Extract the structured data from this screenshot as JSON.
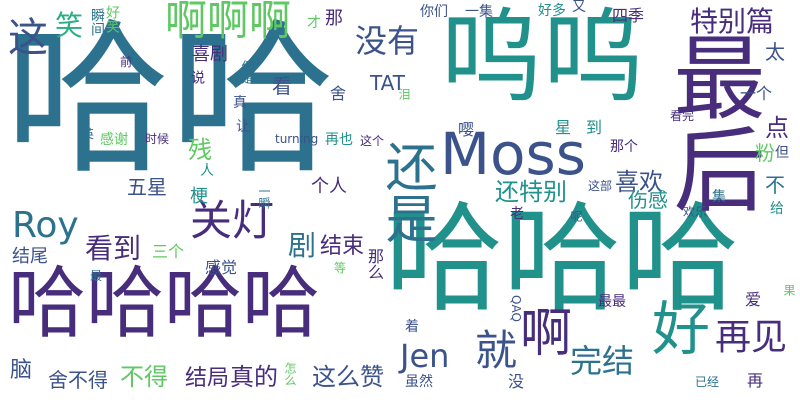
{
  "cloud": {
    "words": [
      {
        "text": "哈哈",
        "color": "#2c728e",
        "vertical": false
      },
      {
        "text": "哈哈哈",
        "color": "#21918c",
        "vertical": false
      },
      {
        "text": "呜呜",
        "color": "#21918c",
        "vertical": false
      },
      {
        "text": "最后",
        "color": "#472d7b",
        "vertical": true
      },
      {
        "text": "Moss",
        "color": "#3b528b",
        "vertical": false
      },
      {
        "text": "哈哈哈哈",
        "color": "#472d7b",
        "vertical": false
      },
      {
        "text": "还是",
        "color": "#2c728e",
        "vertical": true
      },
      {
        "text": "好",
        "color": "#21918c",
        "vertical": false
      },
      {
        "text": "就",
        "color": "#3b528b",
        "vertical": false
      },
      {
        "text": "啊",
        "color": "#472d7b",
        "vertical": false
      },
      {
        "text": "啊啊啊",
        "color": "#5ec962",
        "vertical": false
      },
      {
        "text": "这",
        "color": "#3b528b",
        "vertical": false
      },
      {
        "text": "笑",
        "color": "#28ae80",
        "vertical": false
      },
      {
        "text": "关灯",
        "color": "#472d7b",
        "vertical": false
      },
      {
        "text": "Roy",
        "color": "#2c728e",
        "vertical": false
      },
      {
        "text": "Jen",
        "color": "#3b528b",
        "vertical": false
      },
      {
        "text": "再见",
        "color": "#472d7b",
        "vertical": false
      },
      {
        "text": "完结",
        "color": "#2c728e",
        "vertical": false
      },
      {
        "text": "没有",
        "color": "#3b528b",
        "vertical": false
      },
      {
        "text": "特别篇",
        "color": "#472d7b",
        "vertical": false
      },
      {
        "text": "喜欢",
        "color": "#3b528b",
        "vertical": false
      },
      {
        "text": "看到",
        "color": "#472d7b",
        "vertical": false
      },
      {
        "text": "还特别",
        "color": "#21918c",
        "vertical": false
      },
      {
        "text": "结束",
        "color": "#472d7b",
        "vertical": false
      },
      {
        "text": "剧",
        "color": "#2c728e",
        "vertical": false
      },
      {
        "text": "不得",
        "color": "#5ec962",
        "vertical": false
      },
      {
        "text": "真的",
        "color": "#472d7b",
        "vertical": false
      },
      {
        "text": "这么赞",
        "color": "#3b528b",
        "vertical": false
      },
      {
        "text": "结局",
        "color": "#472d7b",
        "vertical": false
      },
      {
        "text": "舍不得",
        "color": "#3b528b",
        "vertical": false
      },
      {
        "text": "脑",
        "color": "#3b528b",
        "vertical": false
      },
      {
        "text": "结尾",
        "color": "#3b528b",
        "vertical": false
      },
      {
        "text": "三个",
        "color": "#5ec962",
        "vertical": false
      },
      {
        "text": "感觉",
        "color": "#3b528b",
        "vertical": false
      },
      {
        "text": "那么",
        "color": "#472d7b",
        "vertical": true
      },
      {
        "text": "喜剧",
        "color": "#472d7b",
        "vertical": false
      },
      {
        "text": "看",
        "color": "#3b528b",
        "vertical": false
      },
      {
        "text": "TAT",
        "color": "#3b528b",
        "vertical": false
      },
      {
        "text": "瞬间",
        "color": "#2c728e",
        "vertical": true
      },
      {
        "text": "好笑",
        "color": "#5ec962",
        "vertical": true
      },
      {
        "text": "那",
        "color": "#472d7b",
        "vertical": false
      },
      {
        "text": "才",
        "color": "#5ec962",
        "vertical": false
      },
      {
        "text": "你们",
        "color": "#3b528b",
        "vertical": false
      },
      {
        "text": "一集",
        "color": "#3b528b",
        "vertical": false
      },
      {
        "text": "好多",
        "color": "#21918c",
        "vertical": false
      },
      {
        "text": "又",
        "color": "#3b528b",
        "vertical": false
      },
      {
        "text": "四季",
        "color": "#472d7b",
        "vertical": false
      },
      {
        "text": "太",
        "color": "#3b528b",
        "vertical": false
      },
      {
        "text": "一个",
        "color": "#3b528b",
        "vertical": false
      },
      {
        "text": "点",
        "color": "#472d7b",
        "vertical": false
      },
      {
        "text": "粉",
        "color": "#5ec962",
        "vertical": false
      },
      {
        "text": "但",
        "color": "#3b528b",
        "vertical": false
      },
      {
        "text": "不",
        "color": "#2c728e",
        "vertical": false
      },
      {
        "text": "给",
        "color": "#21918c",
        "vertical": false
      },
      {
        "text": "看完",
        "color": "#472d7b",
        "vertical": false
      },
      {
        "text": "舍",
        "color": "#3b528b",
        "vertical": false
      },
      {
        "text": "真",
        "color": "#3b528b",
        "vertical": false
      },
      {
        "text": "让",
        "color": "#3b528b",
        "vertical": false
      },
      {
        "text": "嘤",
        "color": "#3b528b",
        "vertical": false
      },
      {
        "text": "星",
        "color": "#21918c",
        "vertical": false
      },
      {
        "text": "到",
        "color": "#21918c",
        "vertical": false
      },
      {
        "text": "那个",
        "color": "#472d7b",
        "vertical": false
      },
      {
        "text": "伤感",
        "color": "#21918c",
        "vertical": false
      },
      {
        "text": "个人",
        "color": "#472d7b",
        "vertical": false
      },
      {
        "text": "梗",
        "color": "#21918c",
        "vertical": false
      },
      {
        "text": "残",
        "color": "#5ec962",
        "vertical": false
      },
      {
        "text": "人",
        "color": "#21918c",
        "vertical": false
      },
      {
        "text": "五星",
        "color": "#3b528b",
        "vertical": false
      },
      {
        "text": "一瞬",
        "color": "#2c728e",
        "vertical": true
      },
      {
        "text": "感谢",
        "color": "#5ec962",
        "vertical": false
      },
      {
        "text": "时候",
        "color": "#472d7b",
        "vertical": false
      },
      {
        "text": "turning",
        "color": "#3b528b",
        "vertical": false
      },
      {
        "text": "再也",
        "color": "#21918c",
        "vertical": false
      },
      {
        "text": "这个",
        "color": "#472d7b",
        "vertical": false
      },
      {
        "text": "说",
        "color": "#472d7b",
        "vertical": true
      },
      {
        "text": "但是",
        "color": "#2c728e",
        "vertical": true
      },
      {
        "text": "前",
        "color": "#472d7b",
        "vertical": false
      },
      {
        "text": "泪",
        "color": "#5ec962",
        "vertical": true
      },
      {
        "text": "英",
        "color": "#2c728e",
        "vertical": false
      },
      {
        "text": "这部",
        "color": "#3b528b",
        "vertical": false
      },
      {
        "text": "欢乐",
        "color": "#3b528b",
        "vertical": false
      },
      {
        "text": "集",
        "color": "#2c728e",
        "vertical": false
      },
      {
        "text": "呢",
        "color": "#3b528b",
        "vertical": true
      },
      {
        "text": "老",
        "color": "#472d7b",
        "vertical": false
      },
      {
        "text": "最",
        "color": "#2c728e",
        "vertical": false
      },
      {
        "text": "等",
        "color": "#5ec962",
        "vertical": false
      },
      {
        "text": "QAQ",
        "color": "#3b528b",
        "vertical": true
      },
      {
        "text": "最最",
        "color": "#472d7b",
        "vertical": false
      },
      {
        "text": "爱",
        "color": "#472d7b",
        "vertical": false
      },
      {
        "text": "果",
        "color": "#5ec962",
        "vertical": true
      },
      {
        "text": "着",
        "color": "#3b528b",
        "vertical": false
      },
      {
        "text": "怎么",
        "color": "#5ec962",
        "vertical": true
      },
      {
        "text": "虽然",
        "color": "#3b528b",
        "vertical": false
      },
      {
        "text": "没",
        "color": "#3b528b",
        "vertical": false
      },
      {
        "text": "再",
        "color": "#472d7b",
        "vertical": true
      },
      {
        "text": "已经",
        "color": "#2c728e",
        "vertical": false
      }
    ]
  }
}
